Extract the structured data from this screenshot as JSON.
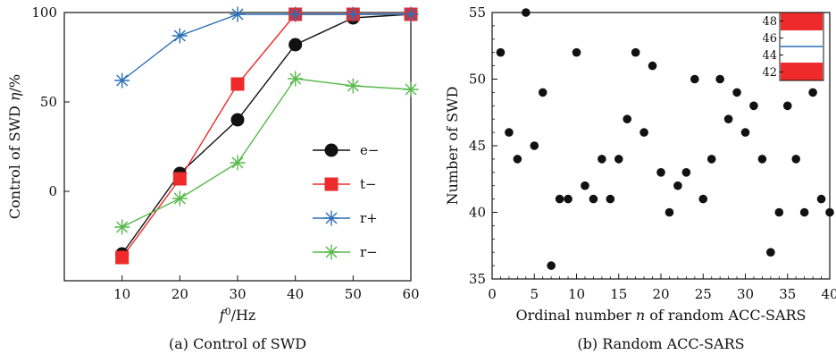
{
  "chart_data": [
    {
      "type": "line",
      "x": [
        10,
        20,
        30,
        40,
        50,
        60
      ],
      "series": [
        {
          "name": "e−",
          "color": "#111111",
          "marker": "circle",
          "values": [
            -35,
            10,
            40,
            82,
            97,
            99
          ]
        },
        {
          "name": "t−",
          "color": "#ee2a2a",
          "marker": "square",
          "values": [
            -37,
            7,
            60,
            99,
            99,
            99
          ]
        },
        {
          "name": "r+",
          "color": "#2a6fb5",
          "marker": "asterisk",
          "values": [
            62,
            87,
            99,
            99,
            99,
            99
          ]
        },
        {
          "name": "r−",
          "color": "#57b84a",
          "marker": "asterisk",
          "values": [
            -20,
            -4,
            16,
            63,
            59,
            57
          ]
        }
      ],
      "xlim": [
        0,
        60
      ],
      "ylim": [
        -50,
        100
      ],
      "x_ticks": [
        "10",
        "20",
        "30",
        "40",
        "50",
        "60"
      ],
      "y_ticks": [
        "0",
        "50",
        "100"
      ],
      "y_tick_values": [
        0,
        50,
        100
      ],
      "legend": "center-right",
      "grid": false
    },
    {
      "type": "scatter",
      "x": [
        1,
        2,
        3,
        4,
        5,
        6,
        7,
        8,
        9,
        10,
        11,
        12,
        13,
        14,
        15,
        16,
        17,
        18,
        19,
        20,
        21,
        22,
        23,
        24,
        25,
        26,
        27,
        28,
        29,
        30,
        31,
        32,
        33,
        34,
        35,
        36,
        37,
        38,
        39,
        40
      ],
      "y": [
        52,
        46,
        44,
        55,
        45,
        49,
        36,
        41,
        41,
        52,
        42,
        41,
        44,
        41,
        44,
        47,
        52,
        46,
        51,
        43,
        40,
        42,
        43,
        50,
        41,
        44,
        50,
        47,
        49,
        46,
        48,
        44,
        37,
        40,
        48,
        44,
        40,
        49,
        41,
        40
      ],
      "xlim": [
        0,
        40
      ],
      "ylim": [
        35,
        55
      ],
      "x_ticks": [
        "0",
        "5",
        "10",
        "15",
        "20",
        "25",
        "30",
        "35",
        "40"
      ],
      "y_ticks": [
        "35",
        "40",
        "45",
        "50",
        "55"
      ],
      "color": "#111111",
      "grid": false,
      "colorbar": {
        "ticks": [
          "48",
          "46",
          "44",
          "42"
        ],
        "tick_values": [
          48,
          46,
          44,
          42
        ],
        "range": [
          41,
          49
        ],
        "red_bands": [
          [
            46.9,
            49
          ],
          [
            41,
            43.1
          ]
        ],
        "line_value": 45,
        "red_color": "#ee2a2a",
        "line_color": "#2a6fb5",
        "placement": "top-right inset"
      }
    }
  ],
  "labels": {
    "a_ylabel_pre": "Control of SWD ",
    "a_ylabel_sym": "η",
    "a_ylabel_post": "/%",
    "a_xlabel_f": "f",
    "a_xlabel_sup": "0",
    "a_xlabel_post": "/Hz",
    "a_caption": "(a) Control of SWD",
    "b_ylabel": "Number of SWD",
    "b_xlabel_pre": "Ordinal number ",
    "b_xlabel_n": "n",
    "b_xlabel_post": " of random ACC-SARS",
    "b_caption": "(b) Random ACC-SARS"
  }
}
